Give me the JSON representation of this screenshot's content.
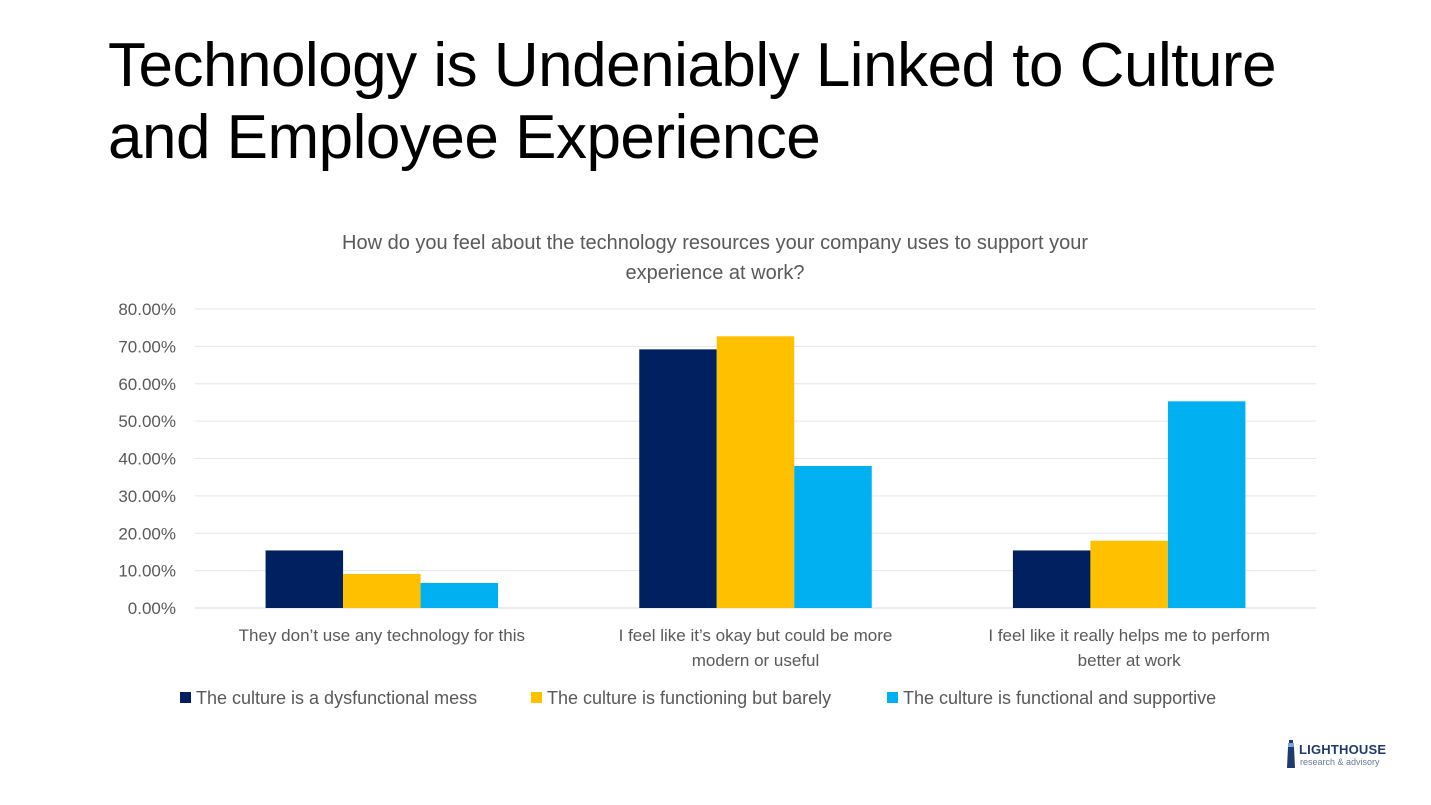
{
  "slide": {
    "title_line1": "Technology is Undeniably Linked to Culture",
    "title_line2": "and Employee Experience"
  },
  "chart_data": {
    "type": "bar",
    "title_line1": "How do you feel about the technology resources your company uses to support your",
    "title_line2": "experience at work?",
    "categories": [
      [
        "They don’t use any technology for this"
      ],
      [
        "I feel like it’s okay but could be more",
        "modern or useful"
      ],
      [
        "I feel like it really helps me to perform",
        "better at work"
      ]
    ],
    "series": [
      {
        "name": "The culture is a dysfunctional mess",
        "color": "#002060",
        "values": [
          15.4,
          69.2,
          15.4
        ]
      },
      {
        "name": "The culture is functioning but barely",
        "color": "#FFC000",
        "values": [
          9.1,
          72.7,
          18.0
        ]
      },
      {
        "name": "The culture is functional and supportive",
        "color": "#00B0F0",
        "values": [
          6.7,
          38.0,
          55.3
        ]
      }
    ],
    "ylim": [
      0,
      80
    ],
    "yticks": [
      "0.00%",
      "10.00%",
      "20.00%",
      "30.00%",
      "40.00%",
      "50.00%",
      "60.00%",
      "70.00%",
      "80.00%"
    ],
    "grid": true,
    "legend_position": "bottom",
    "xlabel": "",
    "ylabel": ""
  },
  "logo": {
    "brand": "LIGHTHOUSE",
    "tagline": "research & advisory",
    "color": "#1f3a6e"
  }
}
